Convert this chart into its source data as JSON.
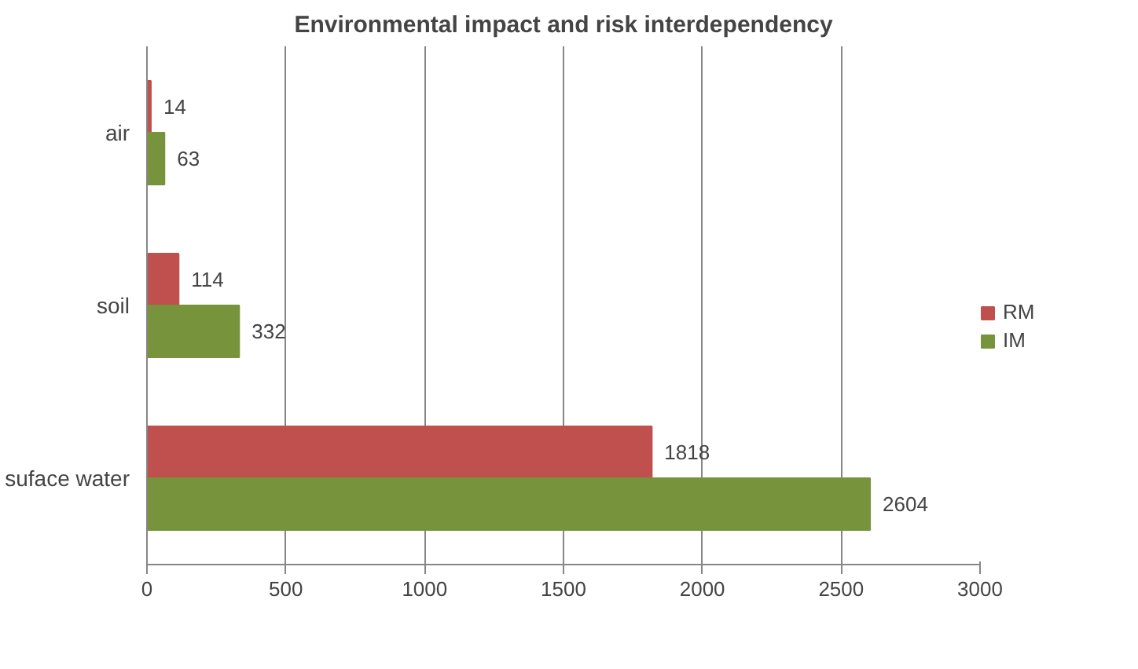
{
  "chart_data": {
    "type": "bar",
    "orientation": "horizontal",
    "title": "Environmental impact and risk interdependency",
    "categories": [
      "air",
      "soil",
      "suface water"
    ],
    "series": [
      {
        "name": "RM",
        "color": "#c0504d",
        "values": [
          14,
          114,
          1818
        ]
      },
      {
        "name": "IM",
        "color": "#77933c",
        "values": [
          63,
          332,
          2604
        ]
      }
    ],
    "xlim": [
      0,
      3000
    ],
    "xticks": [
      0,
      500,
      1000,
      1500,
      2000,
      2500,
      3000
    ],
    "grid": "x",
    "legend": "right",
    "data_labels": true
  }
}
